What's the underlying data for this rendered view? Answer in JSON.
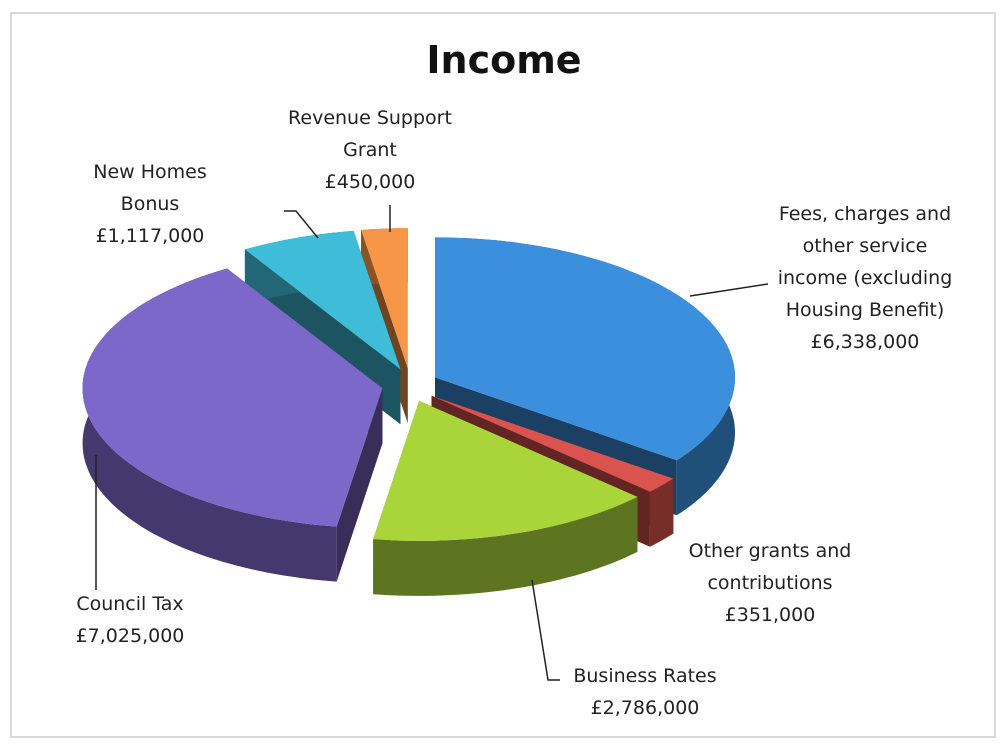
{
  "chart_data": {
    "type": "pie3d",
    "title": "Income",
    "categories": [
      "Fees, charges and other service income (excluding Housing Benefit)",
      "Other grants and contributions",
      "Business Rates",
      "Council Tax",
      "New Homes Bonus",
      "Revenue Support Grant"
    ],
    "values": [
      6338000,
      351000,
      2786000,
      7025000,
      1117000,
      450000
    ],
    "value_labels": [
      "£6,338,000",
      "£351,000",
      "£2,786,000",
      "£7,025,000",
      "£1,117,000",
      "£450,000"
    ],
    "colors": [
      "#3b8fdc",
      "#d9534f",
      "#a9d53b",
      "#7b68c8",
      "#3fbcd8",
      "#f79646"
    ]
  }
}
